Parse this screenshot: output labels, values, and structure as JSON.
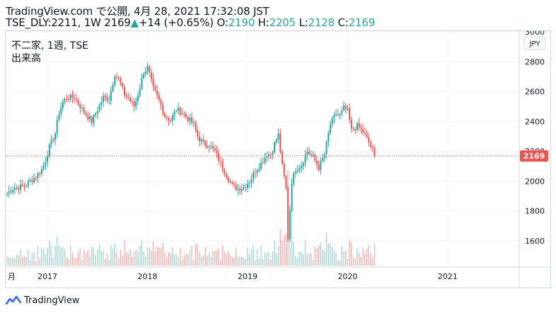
{
  "header": {
    "line1": "TradingView.com で公開, 4月 28, 2021 17:32:08 JST",
    "symbol": "TSE_DLY:2211, 1W 2169",
    "change": "+14 (+0.65%)",
    "o_label": "O:",
    "o_value": "2190",
    "h_label": "H:",
    "h_value": "2205",
    "l_label": "L:",
    "l_value": "2128",
    "c_label": "C:",
    "c_value": "2169"
  },
  "pane": {
    "title": "不二家, 1週, TSE",
    "volume_label": "出来高",
    "currency": "JPY",
    "last_price": "2169"
  },
  "footer": {
    "brand": "TradingView"
  },
  "colors": {
    "up": "#26a69a",
    "down": "#ef5350",
    "up_volume": "#a5d6d2",
    "down_volume": "#f7b0ae",
    "last_price": "#ef5350"
  },
  "chart_data": {
    "type": "candlestick",
    "interval": "weekly",
    "y_ticks": [
      1600,
      1800,
      2000,
      2200,
      2400,
      2600,
      2800,
      3000
    ],
    "ylim": [
      1425,
      3005
    ],
    "x_tick_labels": [
      "月",
      "2017",
      "2018",
      "2019",
      "2020",
      "2021"
    ],
    "x_tick_weeks": [
      0,
      21,
      73,
      125,
      177,
      229
    ],
    "last_price_line": 2169,
    "anchors": [
      [
        0,
        1920
      ],
      [
        3,
        1950
      ],
      [
        6,
        1960
      ],
      [
        9,
        1970
      ],
      [
        12,
        2000
      ],
      [
        15,
        2030
      ],
      [
        18,
        2080
      ],
      [
        20,
        2140
      ],
      [
        22,
        2230
      ],
      [
        25,
        2320
      ],
      [
        27,
        2460
      ],
      [
        29,
        2530
      ],
      [
        31,
        2560
      ],
      [
        35,
        2560
      ],
      [
        39,
        2480
      ],
      [
        44,
        2400
      ],
      [
        47,
        2480
      ],
      [
        50,
        2560
      ],
      [
        53,
        2550
      ],
      [
        56,
        2720
      ],
      [
        58,
        2680
      ],
      [
        61,
        2580
      ],
      [
        63,
        2560
      ],
      [
        66,
        2500
      ],
      [
        68,
        2580
      ],
      [
        71,
        2730
      ],
      [
        73,
        2760
      ],
      [
        76,
        2620
      ],
      [
        79,
        2540
      ],
      [
        82,
        2440
      ],
      [
        85,
        2410
      ],
      [
        88,
        2480
      ],
      [
        91,
        2460
      ],
      [
        94,
        2420
      ],
      [
        97,
        2380
      ],
      [
        99,
        2300
      ],
      [
        102,
        2250
      ],
      [
        105,
        2240
      ],
      [
        108,
        2200
      ],
      [
        111,
        2120
      ],
      [
        114,
        2040
      ],
      [
        117,
        1970
      ],
      [
        120,
        1950
      ],
      [
        123,
        1960
      ],
      [
        126,
        2000
      ],
      [
        129,
        2070
      ],
      [
        132,
        2120
      ],
      [
        135,
        2180
      ],
      [
        137,
        2180
      ],
      [
        139,
        2250
      ],
      [
        141,
        2310
      ],
      [
        143,
        2100
      ],
      [
        145,
        1950
      ],
      [
        146,
        1620
      ],
      [
        148,
        2000
      ],
      [
        150,
        2080
      ],
      [
        153,
        2110
      ],
      [
        156,
        2200
      ],
      [
        159,
        2160
      ],
      [
        162,
        2090
      ],
      [
        165,
        2180
      ],
      [
        168,
        2380
      ],
      [
        171,
        2450
      ],
      [
        173,
        2440
      ],
      [
        175,
        2490
      ],
      [
        177,
        2470
      ],
      [
        179,
        2340
      ],
      [
        182,
        2370
      ],
      [
        185,
        2330
      ],
      [
        188,
        2260
      ],
      [
        190,
        2210
      ],
      [
        191,
        2169
      ]
    ],
    "volume_baseline_weeks": 192
  }
}
